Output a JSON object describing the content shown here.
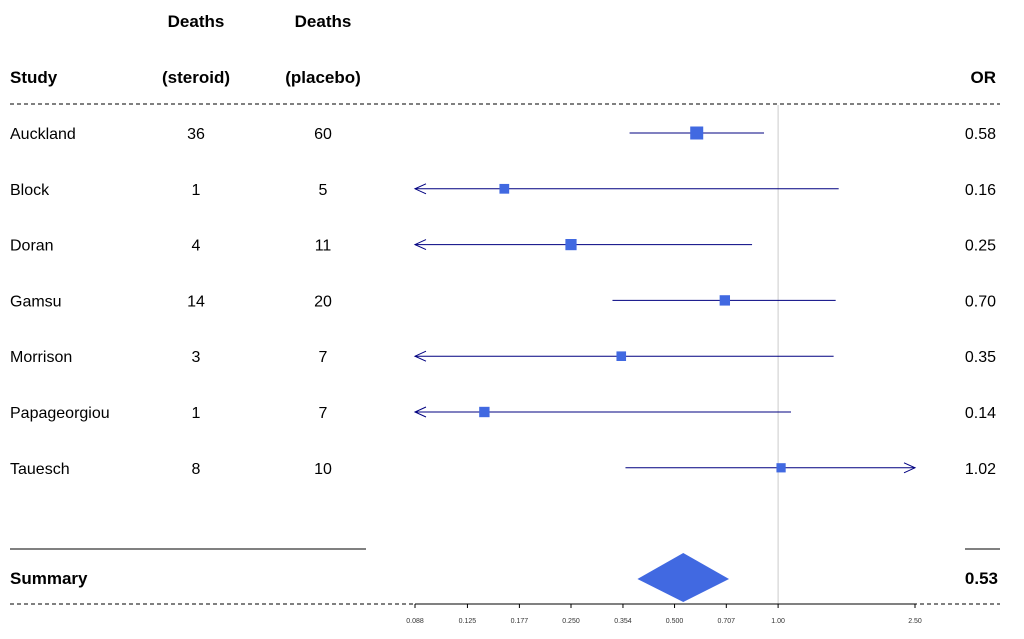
{
  "header": {
    "study": "Study",
    "deaths_steroid_top": "Deaths",
    "deaths_steroid_bottom": "(steroid)",
    "deaths_placebo_top": "Deaths",
    "deaths_placebo_bottom": "(placebo)",
    "or": "OR"
  },
  "summary": {
    "label": "Summary",
    "or": "0.53"
  },
  "colors": {
    "box": "#4169E1",
    "ci_line": "#000080",
    "ref_line": "#cccccc"
  },
  "chart_data": {
    "type": "forest",
    "scale": "log",
    "xlim": [
      0.088,
      2.5
    ],
    "ref_line": 1.0,
    "ticks": [
      0.088,
      0.125,
      0.177,
      0.25,
      0.354,
      0.5,
      0.707,
      1.0,
      2.5
    ],
    "tick_labels": [
      "0.088",
      "0.125",
      "0.177",
      "0.250",
      "0.354",
      "0.500",
      "0.707",
      "1.00",
      "2.50"
    ],
    "studies": [
      {
        "study": "Auckland",
        "deaths_steroid": "36",
        "deaths_placebo": "60",
        "or_label": "0.58",
        "or": 0.58,
        "lower": 0.37,
        "upper": 0.91,
        "weight": 1.0,
        "left_arrow": false,
        "right_arrow": false
      },
      {
        "study": "Block",
        "deaths_steroid": "1",
        "deaths_placebo": "5",
        "or_label": "0.16",
        "or": 0.16,
        "lower": 0.088,
        "upper": 1.5,
        "weight": 0.35,
        "left_arrow": true,
        "right_arrow": false
      },
      {
        "study": "Doran",
        "deaths_steroid": "4",
        "deaths_placebo": "11",
        "or_label": "0.25",
        "or": 0.25,
        "lower": 0.088,
        "upper": 0.84,
        "weight": 0.6,
        "left_arrow": true,
        "right_arrow": false
      },
      {
        "study": "Gamsu",
        "deaths_steroid": "14",
        "deaths_placebo": "20",
        "or_label": "0.70",
        "or": 0.7,
        "lower": 0.33,
        "upper": 1.47,
        "weight": 0.45,
        "left_arrow": false,
        "right_arrow": false
      },
      {
        "study": "Morrison",
        "deaths_steroid": "3",
        "deaths_placebo": "7",
        "or_label": "0.35",
        "or": 0.35,
        "lower": 0.088,
        "upper": 1.45,
        "weight": 0.33,
        "left_arrow": true,
        "right_arrow": false
      },
      {
        "study": "Papageorgiou",
        "deaths_steroid": "1",
        "deaths_placebo": "7",
        "or_label": "0.14",
        "or": 0.14,
        "lower": 0.088,
        "upper": 1.09,
        "weight": 0.45,
        "left_arrow": true,
        "right_arrow": false
      },
      {
        "study": "Tauesch",
        "deaths_steroid": "8",
        "deaths_placebo": "10",
        "or_label": "1.02",
        "or": 1.02,
        "lower": 0.36,
        "upper": 2.5,
        "weight": 0.28,
        "left_arrow": false,
        "right_arrow": true
      }
    ],
    "summary": {
      "or": 0.53,
      "lower": 0.39,
      "upper": 0.72
    }
  }
}
